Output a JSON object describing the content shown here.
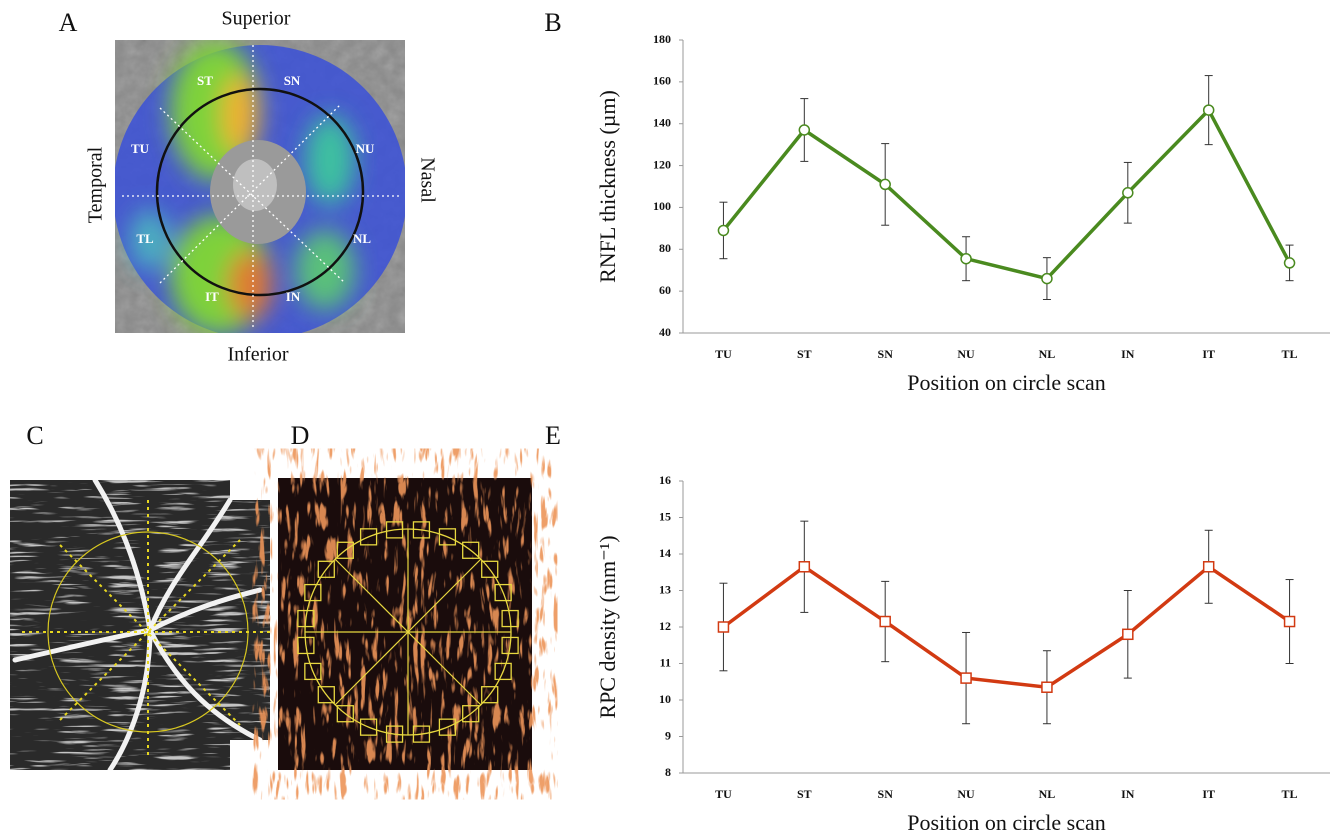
{
  "panel_labels": [
    "A",
    "B",
    "C",
    "D",
    "E"
  ],
  "panel_a": {
    "superior": "Superior",
    "inferior": "Inferior",
    "temporal": "Temporal",
    "nasal": "Nasal",
    "sectors": [
      "ST",
      "SN",
      "TU",
      "NU",
      "TL",
      "NL",
      "IT",
      "IN"
    ]
  },
  "chart_data": [
    {
      "type": "line",
      "x_label": "Position on circle scan",
      "y_label": "RNFL thickness (µm)",
      "categories": [
        "TU",
        "ST",
        "SN",
        "NU",
        "NL",
        "IN",
        "IT",
        "TL"
      ],
      "values": [
        89,
        137,
        111,
        75.5,
        66,
        107,
        146.5,
        73.5
      ],
      "errors": [
        13.5,
        15,
        19.5,
        10.5,
        10,
        14.5,
        16.5,
        8.5
      ],
      "color": "#4a8a1f",
      "marker": "circle",
      "ylim": [
        40,
        180
      ],
      "yticks": [
        40,
        60,
        80,
        100,
        120,
        140,
        160,
        180
      ]
    },
    {
      "type": "line",
      "x_label": "Position on circle scan",
      "y_label": "RPC density (mm⁻¹)",
      "categories": [
        "TU",
        "ST",
        "SN",
        "NU",
        "NL",
        "IN",
        "IT",
        "TL"
      ],
      "values": [
        12.0,
        13.65,
        12.15,
        10.6,
        10.35,
        11.8,
        13.65,
        12.15
      ],
      "errors": [
        1.2,
        1.25,
        1.1,
        1.25,
        1.0,
        1.2,
        1.0,
        1.15
      ],
      "color": "#d23a12",
      "marker": "square",
      "ylim": [
        8,
        16
      ],
      "yticks": [
        8,
        9,
        10,
        11,
        12,
        13,
        14,
        15,
        16
      ]
    }
  ]
}
